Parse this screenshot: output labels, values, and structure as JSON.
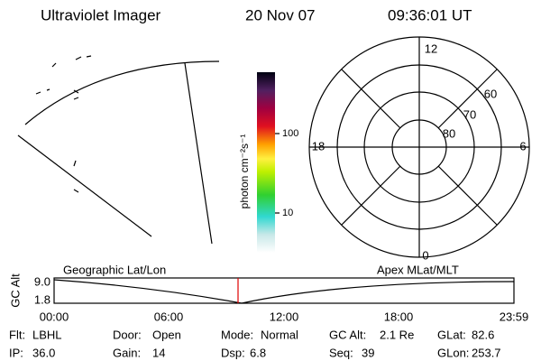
{
  "header": {
    "title": "Ultraviolet Imager",
    "date": "20 Nov 07",
    "time": "09:36:01 UT"
  },
  "colorbar": {
    "label": "photon cm⁻²s⁻¹",
    "ticks": [
      "100",
      "10"
    ]
  },
  "polar": {
    "mlt_labels": [
      "12",
      "18",
      "6",
      "0"
    ],
    "lat_labels": [
      "60",
      "70",
      "80"
    ]
  },
  "timeline": {
    "y_label": "GC Alt",
    "y_ticks": [
      "9.0",
      "1.8"
    ],
    "left_title": "Geographic Lat/Lon",
    "right_title": "Apex MLat/MLT",
    "x_ticks": [
      "00:00",
      "06:00",
      "12:00",
      "18:00",
      "23:59"
    ]
  },
  "status": [
    [
      {
        "label": "Flt:",
        "value": "LBHL"
      },
      {
        "label": "Door:",
        "value": "Open"
      },
      {
        "label": "Mode:",
        "value": "Normal"
      },
      {
        "label": "GC Alt:",
        "value": "2.1 Re"
      },
      {
        "label": "GLat:",
        "value": "82.6"
      }
    ],
    [
      {
        "label": "IP:",
        "value": "36.0"
      },
      {
        "label": "Gain:",
        "value": "14"
      },
      {
        "label": "Dsp:",
        "value": "6.8"
      },
      {
        "label": "Seq:",
        "value": "39"
      },
      {
        "label": "GLon:",
        "value": "253.7"
      }
    ]
  ]
}
